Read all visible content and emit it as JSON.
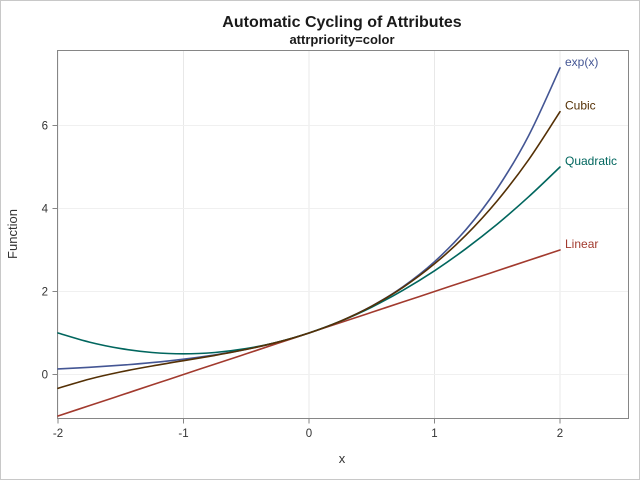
{
  "figure": {
    "title": "Automatic Cycling of Attributes",
    "subtitle": "attrpriority=color",
    "xlabel": "x",
    "ylabel": "Function"
  },
  "style": {
    "title_color": "#1a1a1a",
    "text_color": "#333333",
    "axis_color": "#868686",
    "grid_color_h": "#f0f0f0",
    "grid_color_v": "#e8e8e8",
    "outer_border_color": "#c8c8c8",
    "background": "#ffffff"
  },
  "chart_data": {
    "type": "line",
    "title": "Automatic Cycling of Attributes",
    "subtitle": "attrpriority=color",
    "xlabel": "x",
    "ylabel": "Function",
    "xlim": [
      -2.01,
      2.54
    ],
    "ylim": [
      -1.05,
      7.82
    ],
    "xticks": [
      -2,
      -1,
      0,
      1,
      2
    ],
    "yticks": [
      0,
      2,
      4,
      6
    ],
    "grid": true,
    "legend_position": "curve-end-labels",
    "x": [
      -2,
      -1.75,
      -1.5,
      -1.25,
      -1,
      -0.75,
      -0.5,
      -0.25,
      0,
      0.25,
      0.5,
      0.75,
      1,
      1.25,
      1.5,
      1.75,
      2
    ],
    "series": [
      {
        "name": "exp(x)",
        "color": "#445694",
        "values": [
          0.1353,
          0.1738,
          0.2231,
          0.2865,
          0.3679,
          0.4724,
          0.6065,
          0.7788,
          1,
          1.284,
          1.6487,
          2.117,
          2.7183,
          3.4903,
          4.4817,
          5.7546,
          7.3891
        ]
      },
      {
        "name": "Linear",
        "color": "#A23A2E",
        "values": [
          -1,
          -0.75,
          -0.5,
          -0.25,
          0,
          0.25,
          0.5,
          0.75,
          1,
          1.25,
          1.5,
          1.75,
          2,
          2.25,
          2.5,
          2.75,
          3
        ]
      },
      {
        "name": "Quadratic",
        "color": "#01665E",
        "values": [
          1,
          0.7813,
          0.625,
          0.5313,
          0.5,
          0.5313,
          0.625,
          0.7813,
          1,
          1.2813,
          1.625,
          2.0313,
          2.5,
          3.0313,
          3.625,
          4.2813,
          5
        ]
      },
      {
        "name": "Cubic",
        "color": "#543005",
        "values": [
          -0.3333,
          -0.1119,
          0.0625,
          0.2057,
          0.3333,
          0.4609,
          0.6042,
          0.7786,
          1,
          1.2839,
          1.6458,
          2.1016,
          2.6667,
          3.3568,
          4.1875,
          5.1745,
          6.3333
        ]
      }
    ]
  }
}
